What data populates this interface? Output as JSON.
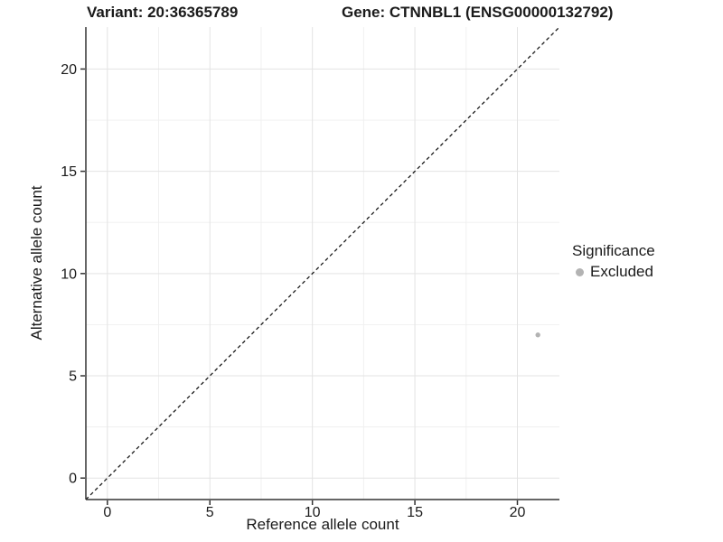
{
  "titles": {
    "variant": "Variant: 20:36365789",
    "gene": "Gene: CTNNBL1 (ENSG00000132792)"
  },
  "chart_data": {
    "type": "scatter",
    "xlabel": "Reference allele count",
    "ylabel": "Alternative allele count",
    "xlim": [
      -1.05,
      22.05
    ],
    "ylim": [
      -1.05,
      22.05
    ],
    "xticks": [
      0,
      5,
      10,
      15,
      20
    ],
    "yticks": [
      0,
      5,
      10,
      15,
      20
    ],
    "xticks_minor": [
      2.5,
      7.5,
      12.5,
      17.5
    ],
    "yticks_minor": [
      2.5,
      7.5,
      12.5,
      17.5
    ],
    "grid": "major+minor",
    "identity_line": {
      "slope": 1,
      "intercept": 0,
      "style": "dashed"
    },
    "points": [
      {
        "x": 21,
        "y": 7,
        "series": "Excluded"
      }
    ],
    "legend": {
      "title": "Significance",
      "position": "right",
      "items": [
        {
          "label": "Excluded",
          "color": "#b3b3b3"
        }
      ]
    },
    "colors": {
      "point": "#b3b3b3",
      "axis_line": "#333333",
      "tick_text": "#1a1a1a",
      "grid_major": "#e3e3e3",
      "grid_minor": "#efefef",
      "identity_line": "#1a1a1a"
    }
  }
}
